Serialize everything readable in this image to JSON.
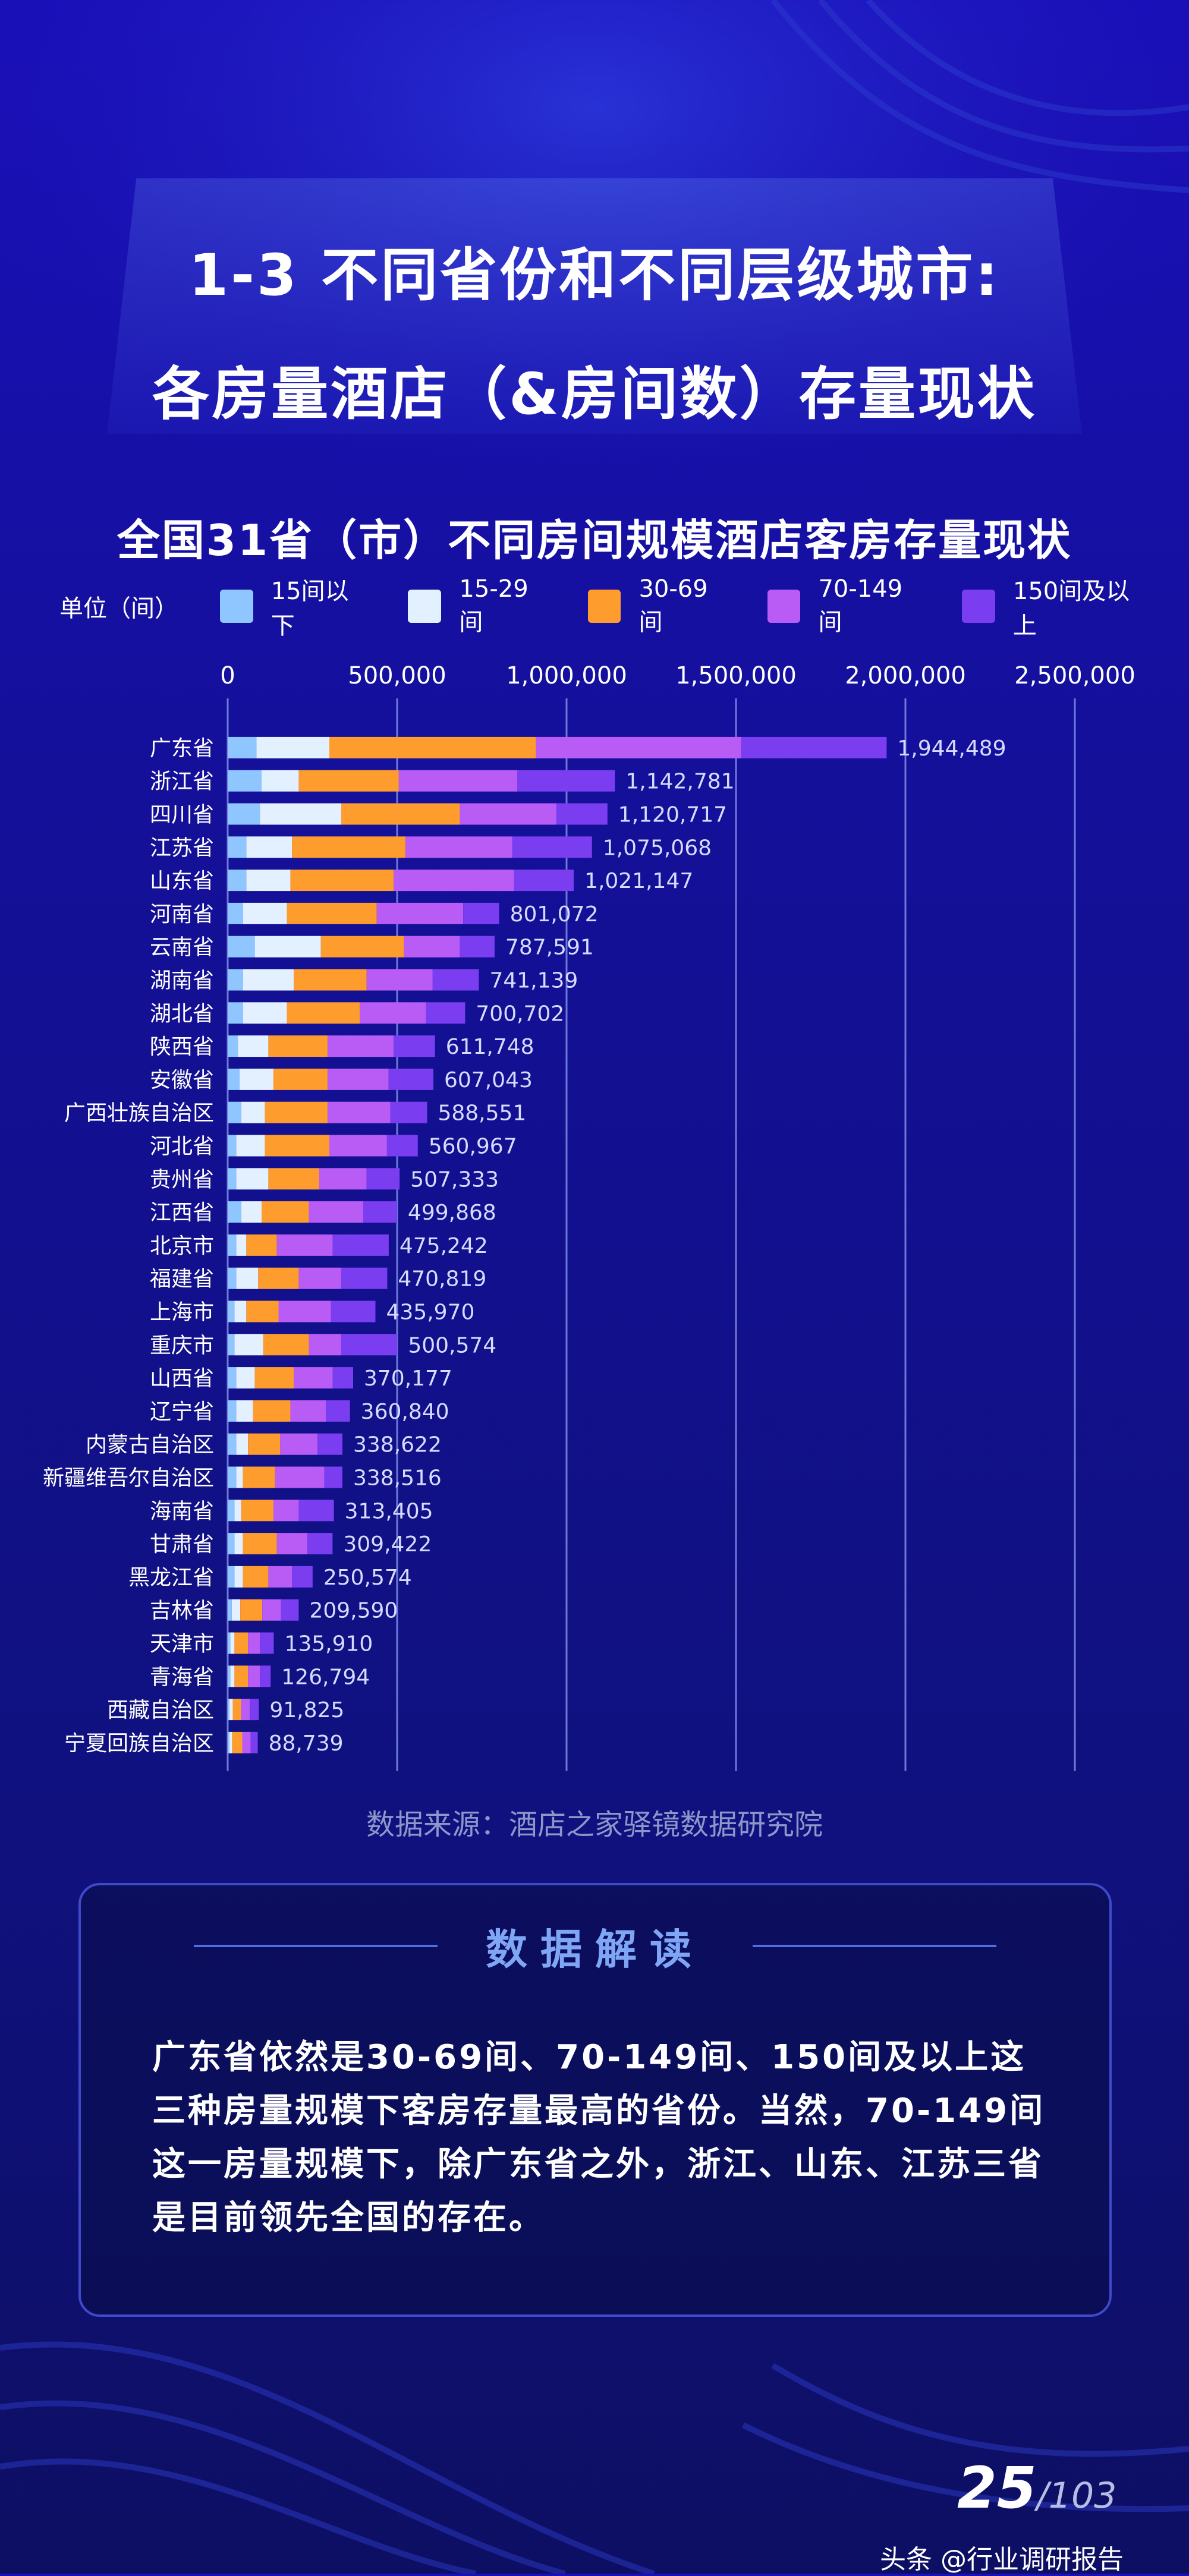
{
  "title": {
    "line1": "1-3 不同省份和不同层级城市:",
    "line2": "各房量酒店（&房间数）存量现状"
  },
  "chart_title": "全国31省（市）不同房间规模酒店客房存量现状",
  "legend_unit": "单位（间）",
  "source": "数据来源：酒店之家驿镜数据研究院",
  "panel": {
    "title": "数据解读",
    "text": "广东省依然是30-69间、70-149间、150间及以上这三种房量规模下客房存量最高的省份。当然，70-149间这一房量规模下，除广东省之外，浙江、山东、江苏三省是目前领先全国的存在。"
  },
  "page": {
    "current": "25",
    "total": "/103"
  },
  "watermark": "头条 @行业调研报告",
  "colors": {
    "s1": "#8fc6ff",
    "s2": "#e3f0ff",
    "s3": "#ff9c2e",
    "s4": "#b85cf5",
    "s5": "#7a3df0",
    "label": "#d6dbff",
    "grid": "#6d7ad9"
  },
  "chart_data": {
    "type": "bar",
    "orientation": "horizontal",
    "stacked": true,
    "xlim": [
      0,
      2500000
    ],
    "xticks": [
      0,
      500000,
      1000000,
      1500000,
      2000000,
      2500000
    ],
    "xtick_labels": [
      "0",
      "500,000",
      "1,000,000",
      "1,500,000",
      "2,000,000",
      "2,500,000"
    ],
    "categories": [
      "广东省",
      "浙江省",
      "四川省",
      "江苏省",
      "山东省",
      "河南省",
      "云南省",
      "湖南省",
      "湖北省",
      "陕西省",
      "安徽省",
      "广西壮族自治区",
      "河北省",
      "贵州省",
      "江西省",
      "北京市",
      "福建省",
      "上海市",
      "重庆市",
      "山西省",
      "辽宁省",
      "内蒙古自治区",
      "新疆维吾尔自治区",
      "海南省",
      "甘肃省",
      "黑龙江省",
      "吉林省",
      "天津市",
      "青海省",
      "西藏自治区",
      "宁夏回族自治区"
    ],
    "series": [
      {
        "name": "15间以下",
        "values": [
          85000,
          100000,
          95000,
          55000,
          55000,
          45000,
          80000,
          45000,
          45000,
          30000,
          35000,
          40000,
          25000,
          25000,
          40000,
          25000,
          25000,
          20000,
          20000,
          25000,
          25000,
          25000,
          25000,
          20000,
          20000,
          20000,
          12000,
          8000,
          8000,
          5000,
          5000
        ]
      },
      {
        "name": "15-29间",
        "values": [
          215000,
          110000,
          240000,
          135000,
          130000,
          130000,
          195000,
          150000,
          130000,
          90000,
          100000,
          70000,
          85000,
          95000,
          60000,
          30000,
          65000,
          35000,
          85000,
          55000,
          50000,
          35000,
          20000,
          20000,
          25000,
          25000,
          25000,
          12000,
          12000,
          10000,
          8000
        ]
      },
      {
        "name": "30-69间",
        "values": [
          610000,
          295000,
          350000,
          335000,
          305000,
          265000,
          245000,
          215000,
          215000,
          175000,
          160000,
          185000,
          190000,
          150000,
          140000,
          90000,
          120000,
          95000,
          135000,
          115000,
          110000,
          95000,
          95000,
          95000,
          100000,
          75000,
          65000,
          40000,
          40000,
          25000,
          30000
        ]
      },
      {
        "name": "70-149间",
        "values": [
          605000,
          350000,
          285000,
          315000,
          355000,
          255000,
          165000,
          195000,
          195000,
          195000,
          180000,
          185000,
          170000,
          140000,
          160000,
          165000,
          125000,
          155000,
          95000,
          115000,
          105000,
          110000,
          145000,
          75000,
          90000,
          70000,
          55000,
          35000,
          35000,
          25000,
          25000
        ]
      },
      {
        "name": "150间及以上",
        "values": [
          429489,
          287781,
          150717,
          235068,
          176147,
          106072,
          102591,
          136139,
          115702,
          121748,
          132043,
          108551,
          90967,
          97333,
          99868,
          165242,
          135819,
          130970,
          165574,
          60177,
          70840,
          73622,
          53516,
          103405,
          74422,
          60574,
          52590,
          40910,
          31794,
          26825,
          20739
        ]
      }
    ],
    "totals": [
      1944489,
      1142781,
      1120717,
      1075068,
      1021147,
      801072,
      787591,
      741139,
      700702,
      611748,
      607043,
      588551,
      560967,
      507333,
      499868,
      475242,
      470819,
      435970,
      500574,
      370177,
      360840,
      338622,
      338516,
      313405,
      309422,
      250574,
      209590,
      135910,
      126794,
      91825,
      88739
    ],
    "total_labels": [
      "1,944,489",
      "1,142,781",
      "1,120,717",
      "1,075,068",
      "1,021,147",
      "801,072",
      "787,591",
      "741,139",
      "700,702",
      "611,748",
      "607,043",
      "588,551",
      "560,967",
      "507,333",
      "499,868",
      "475,242",
      "470,819",
      "435,970",
      "500,574",
      "370,177",
      "360,840",
      "338,622",
      "338,516",
      "313,405",
      "309,422",
      "250,574",
      "209,590",
      "135,910",
      "126,794",
      "91,825",
      "88,739"
    ],
    "grid": true,
    "legend_position": "top"
  }
}
